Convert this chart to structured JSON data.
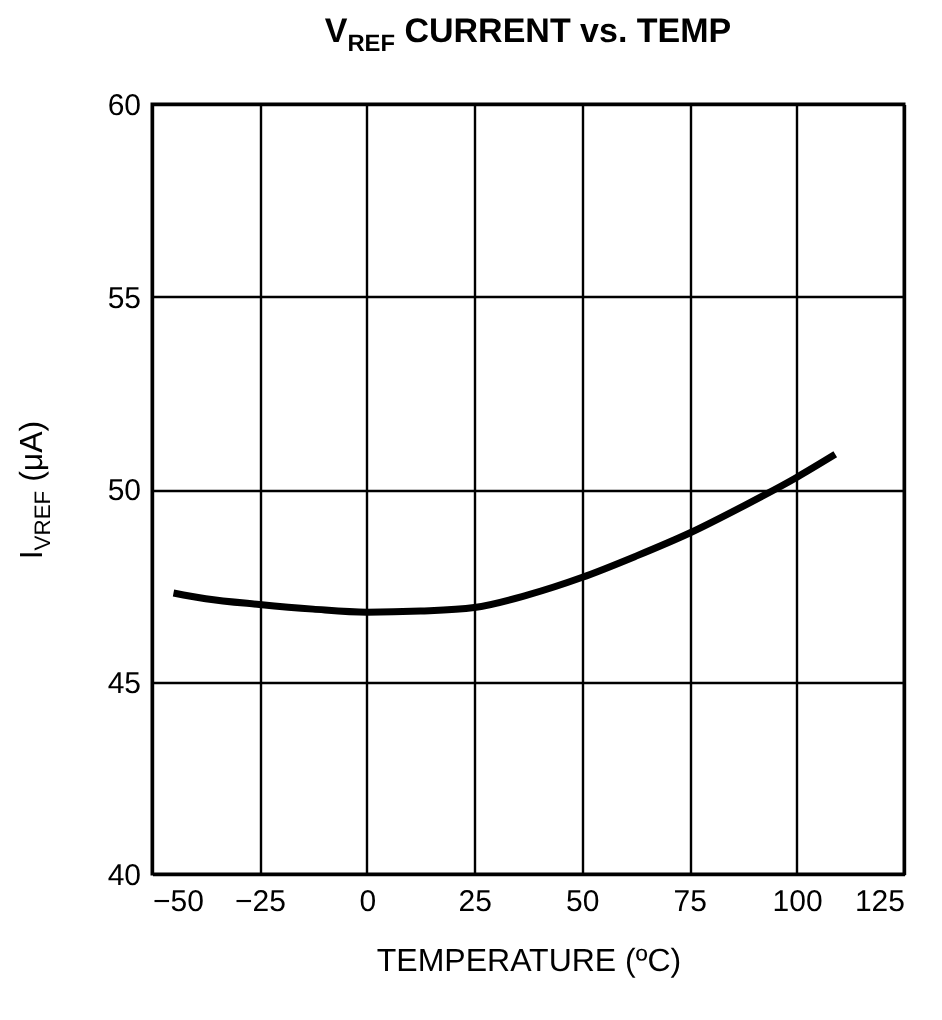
{
  "chart_data": {
    "type": "line",
    "title": "V$_{REF}$ CURRENT vs. TEMP",
    "xlabel": "TEMPERATURE (ºC)",
    "ylabel": "I$_{VREF}$ (μA)",
    "x": [
      -45,
      -37.5,
      -25,
      -12.5,
      0,
      12.5,
      25,
      37.5,
      50,
      62.5,
      75,
      87.5,
      100,
      109
    ],
    "series": [
      {
        "color": "#000000",
        "values": [
          47.3,
          47.15,
          47.0,
          46.88,
          46.8,
          46.83,
          46.92,
          47.25,
          47.7,
          48.25,
          48.85,
          49.55,
          50.3,
          50.9
        ]
      }
    ],
    "xlim": [
      -50,
      125
    ],
    "xticks": [
      -50,
      -25,
      0,
      25,
      50,
      75,
      100,
      125
    ],
    "ylim": [
      40,
      60
    ],
    "yticks": [
      40,
      45,
      50,
      55,
      60
    ],
    "grid": true,
    "line_style": "solid",
    "marker": "none"
  }
}
